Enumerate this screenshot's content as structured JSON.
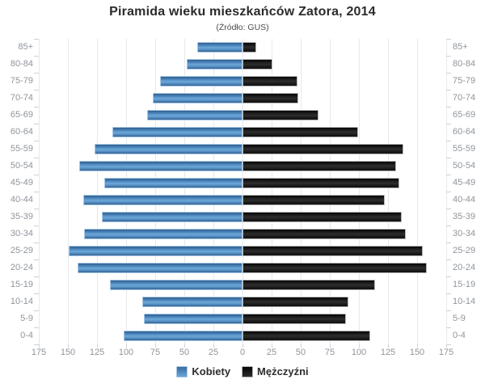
{
  "title": "Piramida wieku mieszkańców Zatora, 2014",
  "subtitle": "(Źródło: GUS)",
  "colors": {
    "kobiety": "#4e86ba",
    "mezczyzni": "#1a1a1a",
    "grid": "#e4e9ee",
    "axis_labels": "#8f959c",
    "title_text": "#2b2b2b"
  },
  "chart_data": {
    "type": "bar",
    "subtype": "population-pyramid",
    "title": "Piramida wieku mieszkańców Zatora, 2014",
    "subtitle": "(Źródło: GUS)",
    "categories": [
      "85+",
      "80-84",
      "75-79",
      "70-74",
      "65-69",
      "60-64",
      "55-59",
      "50-54",
      "45-49",
      "40-44",
      "35-39",
      "30-34",
      "25-29",
      "20-24",
      "15-19",
      "10-14",
      "5-9",
      "0-4"
    ],
    "series": [
      {
        "name": "Kobiety",
        "side": "left",
        "values": [
          39,
          48,
          71,
          77,
          82,
          112,
          127,
          140,
          119,
          137,
          121,
          136,
          149,
          142,
          114,
          86,
          85,
          102
        ]
      },
      {
        "name": "Mężczyźni",
        "side": "right",
        "values": [
          12,
          26,
          47,
          48,
          65,
          99,
          138,
          132,
          135,
          122,
          137,
          140,
          155,
          158,
          114,
          91,
          89,
          110
        ]
      }
    ],
    "x_tick_labels": [
      "175",
      "150",
      "125",
      "100",
      "75",
      "50",
      "25",
      "0",
      "25",
      "50",
      "75",
      "100",
      "125",
      "150",
      "175"
    ],
    "xlim_per_side": [
      0,
      175
    ],
    "x_tick_step": 25,
    "grid": true,
    "legend_position": "bottom"
  }
}
